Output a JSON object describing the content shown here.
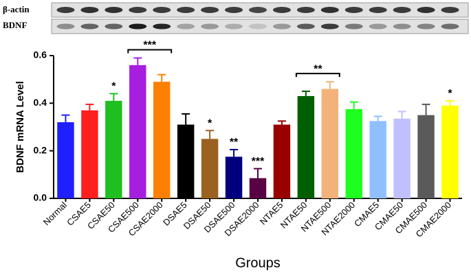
{
  "blot_labels": [
    "β-actin",
    "BDNF"
  ],
  "chart_data": {
    "type": "bar",
    "ylabel": "BDNF mRNA Level",
    "xlabel": "Groups",
    "categories": [
      "Normal",
      "CSAE5",
      "CSAE50",
      "CSAE500",
      "CSAE2000",
      "DSAE5",
      "DSAE50",
      "DSAE500",
      "DSAE2000",
      "NTAE5",
      "NTAE50",
      "NTAE500",
      "NTAE2000",
      "CMAE5",
      "CMAE50",
      "CMAE500",
      "CMAE2000"
    ],
    "values": [
      0.32,
      0.37,
      0.41,
      0.56,
      0.49,
      0.31,
      0.25,
      0.175,
      0.085,
      0.31,
      0.43,
      0.46,
      0.375,
      0.325,
      0.335,
      0.35,
      0.39
    ],
    "errors": [
      0.03,
      0.025,
      0.03,
      0.03,
      0.03,
      0.045,
      0.035,
      0.03,
      0.04,
      0.015,
      0.02,
      0.03,
      0.03,
      0.02,
      0.03,
      0.045,
      0.02
    ],
    "colors": [
      "#1f1fff",
      "#ff1f1f",
      "#1fbf1f",
      "#a61fe0",
      "#ff7f00",
      "#000000",
      "#9a6220",
      "#00007f",
      "#5a0045",
      "#990000",
      "#005f00",
      "#f2b37a",
      "#1fff1f",
      "#8fbfff",
      "#c0c0ff",
      "#5a5a5a",
      "#ffff00"
    ],
    "ylim": [
      0,
      0.6
    ],
    "yticks": [
      {
        "value": 0,
        "label": "0.0"
      },
      0.2,
      0.4,
      0.6
    ],
    "annotations": [
      {
        "text": "*",
        "category": 2
      },
      {
        "text": "*",
        "category": 6
      },
      {
        "text": "**",
        "category": 7
      },
      {
        "text": "***",
        "category": 8
      },
      {
        "text": "*",
        "category": 16
      },
      {
        "text": "***",
        "from": 3,
        "to": 4
      },
      {
        "text": "**",
        "from": 10,
        "to": 11
      }
    ]
  }
}
